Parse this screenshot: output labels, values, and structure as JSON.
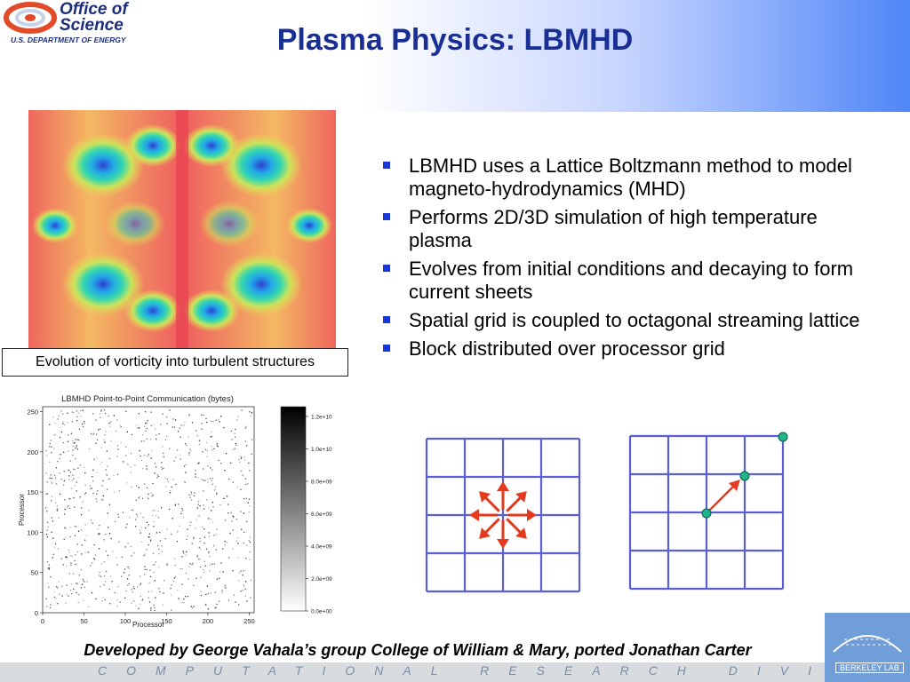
{
  "header": {
    "logo": {
      "line1": "Office of",
      "line2": "Science",
      "dept": "U.S. DEPARTMENT OF ENERGY"
    },
    "title": "Plasma Physics: LBMHD"
  },
  "figure": {
    "caption": "Evolution of vorticity into turbulent structures"
  },
  "bullets": [
    "LBMHD uses a Lattice Boltzmann method to model magneto-hydrodynamics (MHD)",
    "Performs 2D/3D simulation of high temperature plasma",
    "Evolves from initial conditions and decaying to form current sheets",
    "Spatial grid is coupled to octagonal streaming lattice",
    "Block distributed over processor grid"
  ],
  "chart_data": {
    "type": "heatmap",
    "title": "LBMHD Point-to-Point Communication (bytes)",
    "xlabel": "Processor",
    "ylabel": "Processor",
    "x_ticks": [
      "0",
      "50",
      "100",
      "150",
      "200",
      "250"
    ],
    "y_ticks": [
      "0",
      "50",
      "100",
      "150",
      "200",
      "250"
    ],
    "xlim": [
      0,
      256
    ],
    "ylim": [
      0,
      256
    ],
    "colorbar_ticks": [
      "0.0e+00",
      "2.0e+09",
      "4.0e+09",
      "6.0e+09",
      "8.0e+09",
      "1.0e+10",
      "1.2e+10"
    ],
    "colorbar_range": [
      0,
      12600000000
    ]
  },
  "lattice": {
    "line_color": "#5a5fd8",
    "arrow_color": "#e53a1f",
    "node_color": "#1fb58a"
  },
  "footer": {
    "credit": "Developed by George Vahala’s group College of William & Mary, ported Jonathan Carter",
    "division": "COMPUTATIONAL RESEARCH DIVISION",
    "lab": "BERKELEY LAB"
  }
}
